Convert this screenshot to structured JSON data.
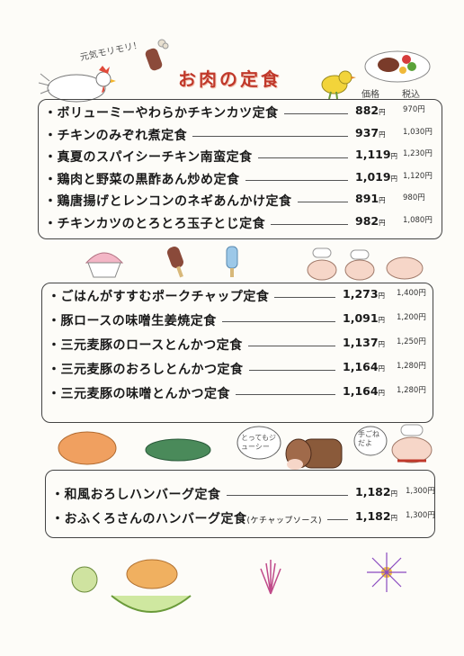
{
  "header": {
    "title": "お肉の定食",
    "tag": "元気モリモリ！",
    "col_price": "価格",
    "col_taxin": "税込"
  },
  "section1": {
    "items": [
      {
        "name": "・ボリューミーやわらかチキンカツ定食",
        "price": "882",
        "unit": "円",
        "taxin": "970円"
      },
      {
        "name": "・チキンのみぞれ煮定食",
        "price": "937",
        "unit": "円",
        "taxin": "1,030円"
      },
      {
        "name": "・真夏のスパイシーチキン南蛮定食",
        "price": "1,119",
        "unit": "円",
        "taxin": "1,230円"
      },
      {
        "name": "・鶏肉と野菜の黒酢あん炒め定食",
        "price": "1,019",
        "unit": "円",
        "taxin": "1,120円"
      },
      {
        "name": "・鶏唐揚げとレンコンのネギあんかけ定食",
        "price": "891",
        "unit": "円",
        "taxin": "980円"
      },
      {
        "name": "・チキンカツのとろとろ玉子とじ定食",
        "price": "982",
        "unit": "円",
        "taxin": "1,080円"
      }
    ]
  },
  "section2": {
    "items": [
      {
        "name": "・ごはんがすすむポークチャップ定食",
        "price": "1,273",
        "unit": "円",
        "taxin": "1,400円"
      },
      {
        "name": "・豚ロースの味噌生姜焼定食",
        "price": "1,091",
        "unit": "円",
        "taxin": "1,200円"
      },
      {
        "name": "・三元麦豚のロースとんかつ定食",
        "price": "1,137",
        "unit": "円",
        "taxin": "1,250円"
      },
      {
        "name": "・三元麦豚のおろしとんかつ定食",
        "price": "1,164",
        "unit": "円",
        "taxin": "1,280円"
      },
      {
        "name": "・三元麦豚の味噌とんかつ定食",
        "price": "1,164",
        "unit": "円",
        "taxin": "1,280円"
      }
    ]
  },
  "section3": {
    "items": [
      {
        "name": "・和風おろしハンバーグ定食",
        "note": "",
        "price": "1,182",
        "unit": "円",
        "taxin": "1,300円"
      },
      {
        "name": "・おふくろさんのハンバーグ定食",
        "note": "(ケチャップソース)",
        "price": "1,182",
        "unit": "円",
        "taxin": "1,300円"
      }
    ]
  },
  "bubbles": {
    "cow": "とってもジューシー",
    "chef": "手ごねだよ"
  },
  "colors": {
    "title": "#c0392b",
    "border": "#444444"
  }
}
